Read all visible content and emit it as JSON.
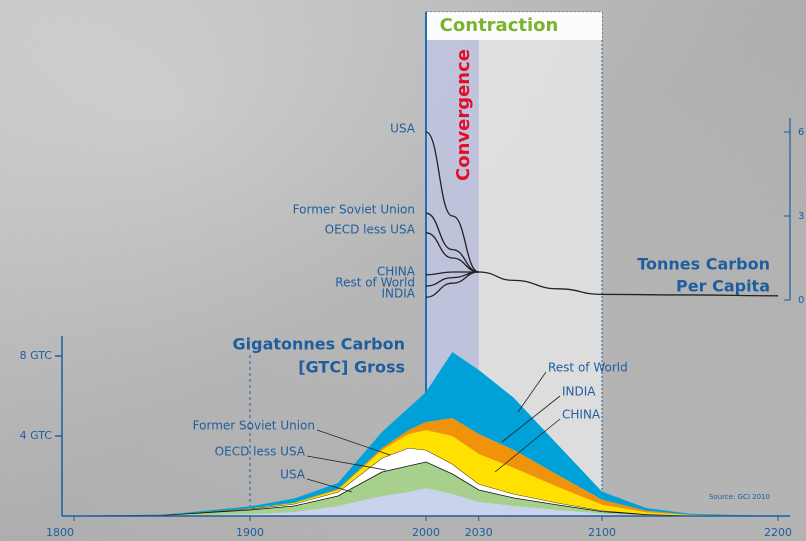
{
  "chart_data": [
    {
      "type": "area",
      "stacked": true,
      "title": [
        "Gigatonnes Carbon",
        "[GTC] Gross"
      ],
      "source": "Source: GCI 2010",
      "x": [
        1800,
        1850,
        1900,
        1925,
        1950,
        1975,
        1990,
        2000,
        2015,
        2030,
        2050,
        2075,
        2100,
        2125,
        2150,
        2200
      ],
      "series": [
        {
          "name": "USA",
          "color": "#c9d3ec",
          "values": [
            0,
            0.01,
            0.1,
            0.2,
            0.5,
            1.0,
            1.2,
            1.4,
            1.1,
            0.7,
            0.5,
            0.3,
            0.12,
            0.04,
            0.01,
            0
          ]
        },
        {
          "name": "OECD less USA",
          "color": "#a8d08d",
          "values": [
            0,
            0.02,
            0.2,
            0.3,
            0.5,
            1.2,
            1.3,
            1.3,
            1.0,
            0.6,
            0.4,
            0.25,
            0.1,
            0.03,
            0.01,
            0
          ]
        },
        {
          "name": "Former Soviet Union",
          "color": "#ffffff",
          "values": [
            0,
            0.01,
            0.05,
            0.1,
            0.2,
            0.7,
            0.9,
            0.6,
            0.5,
            0.3,
            0.2,
            0.1,
            0.05,
            0.02,
            0,
            0
          ]
        },
        {
          "name": "CHINA",
          "color": "#ffe000",
          "values": [
            0,
            0,
            0.02,
            0.05,
            0.1,
            0.4,
            0.7,
            1.0,
            1.4,
            1.5,
            1.3,
            0.8,
            0.3,
            0.1,
            0.03,
            0
          ]
        },
        {
          "name": "INDIA",
          "color": "#f0920a",
          "values": [
            0,
            0,
            0.01,
            0.02,
            0.05,
            0.1,
            0.2,
            0.4,
            0.9,
            1.0,
            0.9,
            0.6,
            0.25,
            0.08,
            0.02,
            0
          ]
        },
        {
          "name": "Rest of World",
          "color": "#00a0d8",
          "values": [
            0,
            0.01,
            0.1,
            0.2,
            0.3,
            0.8,
            1.1,
            1.5,
            3.3,
            3.2,
            2.6,
            1.5,
            0.4,
            0.13,
            0.04,
            0
          ]
        }
      ],
      "xlim": [
        1800,
        2200
      ],
      "xticks": [
        1800,
        1900,
        2000,
        2030,
        2100,
        2200
      ],
      "vlines": [
        1900
      ],
      "ylim": [
        0,
        9
      ],
      "yticks": [
        {
          "value": 4,
          "label": "4 GTC"
        },
        {
          "value": 8,
          "label": "8 GTC"
        }
      ],
      "bands": [
        {
          "label": "Contraction",
          "range": [
            2000,
            2100
          ]
        },
        {
          "label": "Convergence",
          "range": [
            2000,
            2030
          ]
        }
      ]
    },
    {
      "type": "line",
      "title": [
        "Tonnes Carbon",
        "Per Capita"
      ],
      "xlim": [
        1800,
        2200
      ],
      "y2lim": [
        0,
        6.5
      ],
      "y2ticks": [
        0,
        3,
        6
      ],
      "series": [
        {
          "name": "USA",
          "color": "#222222",
          "x": [
            2000,
            2015,
            2030
          ],
          "values": [
            6.0,
            3.0,
            1.0
          ]
        },
        {
          "name": "Former Soviet Union",
          "color": "#222222",
          "x": [
            2000,
            2015,
            2030
          ],
          "values": [
            3.1,
            1.8,
            1.0
          ]
        },
        {
          "name": "OECD less USA",
          "color": "#222222",
          "x": [
            2000,
            2015,
            2030
          ],
          "values": [
            2.4,
            1.5,
            1.0
          ]
        },
        {
          "name": "CHINA",
          "color": "#222222",
          "x": [
            2000,
            2015,
            2030
          ],
          "values": [
            0.9,
            1.0,
            1.0
          ]
        },
        {
          "name": "Rest of World",
          "color": "#222222",
          "x": [
            2000,
            2015,
            2030
          ],
          "values": [
            0.5,
            0.8,
            1.0
          ]
        },
        {
          "name": "INDIA",
          "color": "#222222",
          "x": [
            2000,
            2015,
            2030
          ],
          "values": [
            0.1,
            0.6,
            1.0
          ]
        },
        {
          "color": "#222222",
          "x": [
            2030,
            2050,
            2075,
            2100,
            2150,
            2200
          ],
          "values": [
            1.0,
            0.7,
            0.4,
            0.2,
            0.18,
            0.15
          ]
        }
      ]
    }
  ]
}
